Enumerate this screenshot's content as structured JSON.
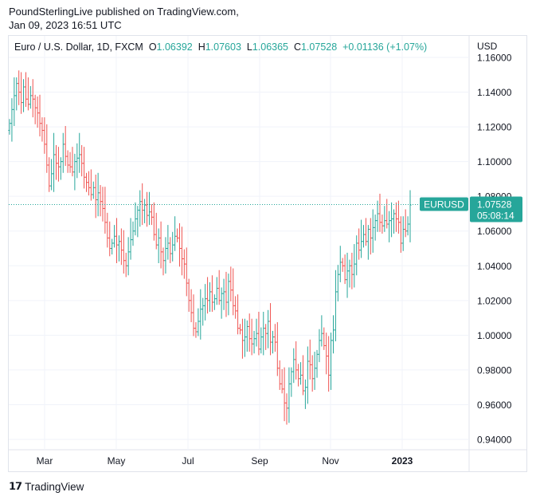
{
  "header": {
    "line1": "PoundSterlingLive published on TradingView.com,",
    "line2": "Jan 09, 2023 16:51 UTC"
  },
  "legend": {
    "symbol": "Euro / U.S. Dollar, 1D, FXCM",
    "o_label": "O",
    "o_value": "1.06392",
    "h_label": "H",
    "h_value": "1.07603",
    "l_label": "L",
    "l_value": "1.06365",
    "c_label": "C",
    "c_value": "1.07528",
    "change": "+0.01136 (+1.07%)"
  },
  "price_tag": {
    "symbol": "EURUSD",
    "price": "1.07528",
    "countdown": "05:08:14"
  },
  "footer": {
    "brand": "TradingView"
  },
  "colors": {
    "up": "#26a69a",
    "down": "#ef5350",
    "tag": "#26a69a",
    "grid": "#f0f3fa",
    "axis_text": "#131722"
  },
  "chart_data": {
    "type": "ohlc",
    "title": "Euro / U.S. Dollar, 1D, FXCM",
    "currency_label": "USD",
    "ylim": [
      0.935,
      1.163
    ],
    "y_ticks": [
      "1.16000",
      "1.14000",
      "1.12000",
      "1.10000",
      "1.08000",
      "1.06000",
      "1.04000",
      "1.02000",
      "1.00000",
      "0.98000",
      "0.96000",
      "0.94000"
    ],
    "x_ticks": [
      "Mar",
      "May",
      "Jul",
      "Sep",
      "Nov",
      "2023"
    ],
    "last_close": 1.07528,
    "close_path_note": "approximate daily closes read from the chart",
    "closes": [
      1.122,
      1.13,
      1.138,
      1.145,
      1.14,
      1.134,
      1.143,
      1.136,
      1.133,
      1.138,
      1.136,
      1.131,
      1.128,
      1.122,
      1.118,
      1.11,
      1.098,
      1.086,
      1.093,
      1.104,
      1.099,
      1.097,
      1.1,
      1.11,
      1.103,
      1.098,
      1.097,
      1.094,
      1.1,
      1.102,
      1.104,
      1.099,
      1.091,
      1.088,
      1.085,
      1.081,
      1.085,
      1.078,
      1.082,
      1.077,
      1.073,
      1.065,
      1.056,
      1.05,
      1.053,
      1.057,
      1.052,
      1.054,
      1.049,
      1.043,
      1.04,
      1.048,
      1.055,
      1.06,
      1.067,
      1.072,
      1.077,
      1.072,
      1.075,
      1.069,
      1.071,
      1.068,
      1.058,
      1.052,
      1.056,
      1.048,
      1.043,
      1.05,
      1.053,
      1.047,
      1.052,
      1.057,
      1.056,
      1.05,
      1.044,
      1.041,
      1.03,
      1.02,
      1.013,
      1.004,
      1.002,
      1.008,
      1.015,
      1.017,
      1.021,
      1.02,
      1.025,
      1.019,
      1.021,
      1.027,
      1.02,
      1.024,
      1.025,
      1.019,
      1.031,
      1.026,
      1.017,
      1.014,
      1.004,
      1.003,
      0.997,
      0.999,
      1.005,
      0.998,
      0.995,
      0.998,
      1.001,
      0.992,
      0.999,
      1.004,
      1.001,
      1.008,
      0.996,
      0.999,
      0.996,
      0.981,
      0.972,
      0.969,
      0.961,
      0.958,
      0.972,
      0.979,
      0.986,
      0.98,
      0.975,
      0.977,
      0.968,
      0.97,
      0.985,
      0.983,
      0.975,
      0.981,
      0.989,
      0.997,
      1.001,
      0.994,
      0.988,
      0.977,
      0.997,
      1.003,
      1.025,
      1.035,
      1.042,
      1.04,
      1.032,
      1.037,
      1.04,
      1.035,
      1.041,
      1.053,
      1.049,
      1.054,
      1.058,
      1.054,
      1.061,
      1.056,
      1.062,
      1.066,
      1.07,
      1.065,
      1.063,
      1.066,
      1.064,
      1.066,
      1.067,
      1.07,
      1.067,
      1.065,
      1.053,
      1.061,
      1.06,
      1.064,
      1.075
    ]
  }
}
